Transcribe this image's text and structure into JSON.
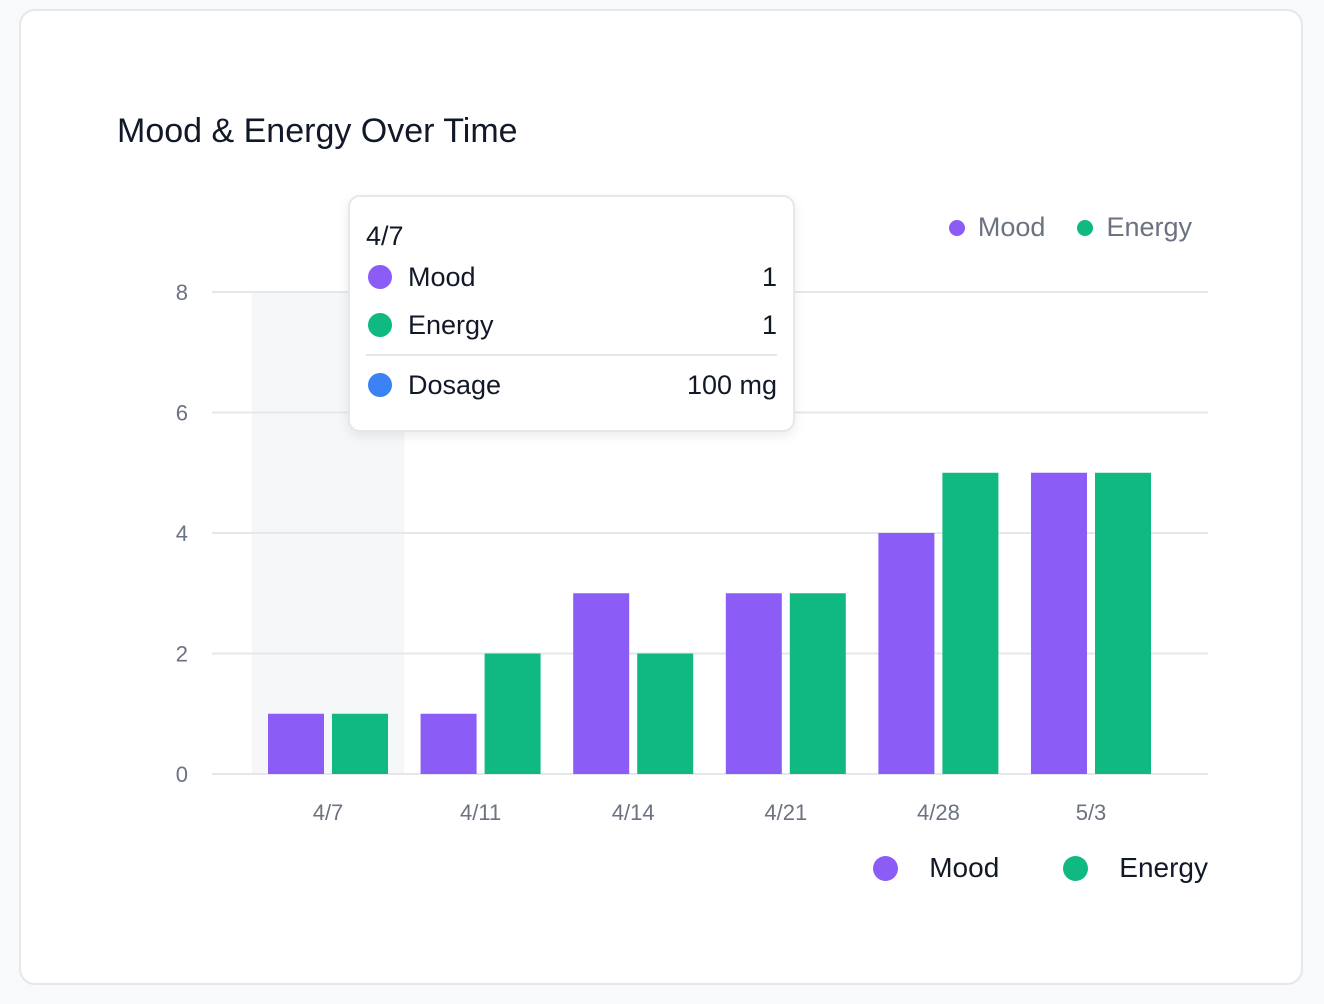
{
  "colors": {
    "mood": "#8b5cf6",
    "energy": "#10b981",
    "dosage": "#3b82f6",
    "grid": "#e5e7eb",
    "highlight": "#f3f4f6"
  },
  "chart_data": {
    "type": "bar",
    "title": "Mood & Energy Over Time",
    "categories": [
      "4/7",
      "4/11",
      "4/14",
      "4/21",
      "4/28",
      "5/3"
    ],
    "series": [
      {
        "name": "Mood",
        "values": [
          1,
          1,
          3,
          3,
          4,
          5
        ]
      },
      {
        "name": "Energy",
        "values": [
          1,
          2,
          2,
          3,
          5,
          5
        ]
      }
    ],
    "yticks": [
      0,
      2,
      4,
      6,
      8
    ],
    "ylim": [
      0,
      8
    ],
    "grid": true,
    "legend_placement": [
      "top-right",
      "bottom-right"
    ],
    "highlighted_category": "4/7"
  },
  "legend_top": [
    {
      "label": "Mood"
    },
    {
      "label": "Energy"
    }
  ],
  "legend_bottom": [
    {
      "label": "Mood"
    },
    {
      "label": "Energy"
    }
  ],
  "tooltip": {
    "date": "4/7",
    "rows": [
      {
        "label": "Mood",
        "value": "1"
      },
      {
        "label": "Energy",
        "value": "1"
      }
    ],
    "extra": {
      "label": "Dosage",
      "value": "100 mg"
    }
  }
}
